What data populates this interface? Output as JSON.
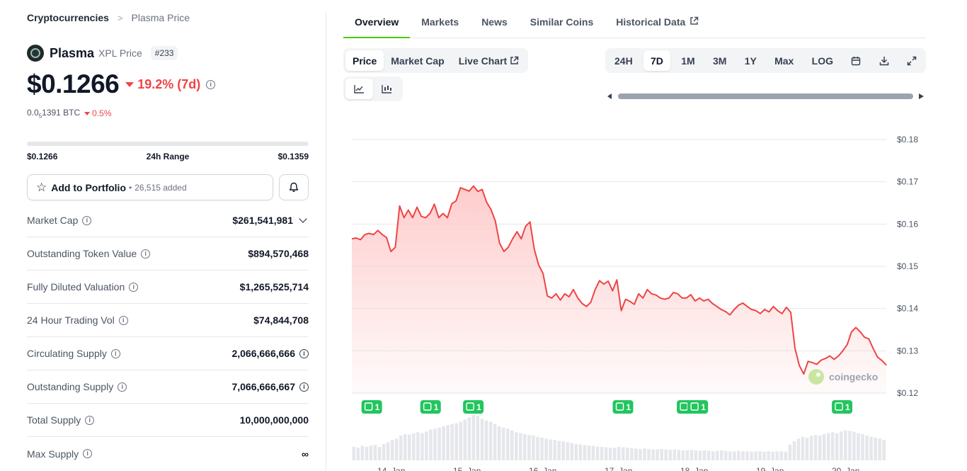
{
  "breadcrumb": {
    "root": "Cryptocurrencies",
    "sep": ">",
    "current": "Plasma Price"
  },
  "coin": {
    "name": "Plasma",
    "symbol": "XPL Price",
    "rank": "#233"
  },
  "price": {
    "value": "$0.1266",
    "change": "19.2% (7d)",
    "btc_value": "0.0",
    "btc_sub": "5",
    "btc_rest": "1391 BTC",
    "btc_change": "0.5%",
    "change_color": "#ef4444"
  },
  "range": {
    "low": "$0.1266",
    "label": "24h Range",
    "high": "$0.1359"
  },
  "portfolio": {
    "label": "Add to Portfolio",
    "bullet": "•",
    "added": "26,515 added"
  },
  "stats": [
    {
      "label": "Market Cap",
      "value": "$261,541,981"
    },
    {
      "label": "Outstanding Token Value",
      "value": "$894,570,468"
    },
    {
      "label": "Fully Diluted Valuation",
      "value": "$1,265,525,714"
    },
    {
      "label": "24 Hour Trading Vol",
      "value": "$74,844,708"
    },
    {
      "label": "Circulating Supply",
      "value": "2,066,666,666"
    },
    {
      "label": "Outstanding Supply",
      "value": "7,066,666,667"
    },
    {
      "label": "Total Supply",
      "value": "10,000,000,000"
    },
    {
      "label": "Max Supply",
      "value": "∞"
    }
  ],
  "tabs": [
    {
      "label": "Overview"
    },
    {
      "label": "Markets"
    },
    {
      "label": "News"
    },
    {
      "label": "Similar Coins"
    },
    {
      "label": "Historical Data"
    }
  ],
  "chart_types": [
    {
      "label": "Price"
    },
    {
      "label": "Market Cap"
    },
    {
      "label": "Live Chart"
    }
  ],
  "ranges": [
    {
      "label": "24H"
    },
    {
      "label": "7D"
    },
    {
      "label": "1M"
    },
    {
      "label": "3M"
    },
    {
      "label": "1Y"
    },
    {
      "label": "Max"
    },
    {
      "label": "LOG"
    }
  ],
  "chart_data": {
    "type": "area",
    "series": [
      {
        "values": [
          0.1565,
          0.1567,
          0.1563,
          0.1575,
          0.1578,
          0.1575,
          0.1585,
          0.1575,
          0.1568,
          0.1535,
          0.1545,
          0.1643,
          0.1615,
          0.1633,
          0.1615,
          0.164,
          0.1618,
          0.1615,
          0.1625,
          0.1647,
          0.1615,
          0.1625,
          0.1615,
          0.1648,
          0.1655,
          0.1686,
          0.1682,
          0.1678,
          0.169,
          0.1677,
          0.1682,
          0.1652,
          0.1635,
          0.1608,
          0.1555,
          0.1535,
          0.1545,
          0.1565,
          0.1582,
          0.1565,
          0.1595,
          0.1605,
          0.154,
          0.1503,
          0.1483,
          0.143,
          0.1425,
          0.1435,
          0.142,
          0.1435,
          0.1428,
          0.1445,
          0.1425,
          0.1412,
          0.1405,
          0.1415,
          0.1445,
          0.1466,
          0.1458,
          0.1465,
          0.1442,
          0.1468,
          0.1395,
          0.1422,
          0.1417,
          0.141,
          0.1435,
          0.1425,
          0.1445,
          0.1435,
          0.1432,
          0.1425,
          0.1422,
          0.1425,
          0.1438,
          0.1435,
          0.1425,
          0.1425,
          0.1433,
          0.1418,
          0.1425,
          0.1418,
          0.1422,
          0.1412,
          0.1405,
          0.1398,
          0.1393,
          0.1385,
          0.1398,
          0.1408,
          0.1413,
          0.1405,
          0.1398,
          0.1395,
          0.1388,
          0.1398,
          0.1392,
          0.1405,
          0.1395,
          0.1388,
          0.1403,
          0.1391,
          0.1305,
          0.1265,
          0.1245,
          0.1275,
          0.1272,
          0.1268,
          0.1278,
          0.1282,
          0.1288,
          0.128,
          0.1288,
          0.13,
          0.1315,
          0.1345,
          0.1355,
          0.1345,
          0.1332,
          0.1328,
          0.1305,
          0.1285,
          0.1277,
          0.1266
        ]
      }
    ],
    "x_tick_labels": [
      "14. Jan",
      "15. Jan",
      "16. Jan",
      "17. Jan",
      "18. Jan",
      "19. Jan",
      "20. Jan"
    ],
    "y_tick_labels": [
      "$0.18",
      "$0.17",
      "$0.16",
      "$0.15",
      "$0.14",
      "$0.13",
      "$0.12"
    ],
    "ylim": [
      0.12,
      0.18
    ],
    "line_color": "#ef4444",
    "fill_color": "#fecaca",
    "watermark": "coingecko",
    "news_markers": [
      {
        "x": 0.03,
        "count": "1"
      },
      {
        "x": 0.14,
        "count": "1"
      },
      {
        "x": 0.22,
        "count": "1"
      },
      {
        "x": 0.5,
        "count": "1"
      },
      {
        "x": 0.62,
        "count": "1"
      },
      {
        "x": 0.64,
        "count": "1"
      },
      {
        "x": 0.91,
        "count": "1"
      }
    ],
    "volume": [
      0.3,
      0.28,
      0.32,
      0.3,
      0.33,
      0.34,
      0.3,
      0.36,
      0.4,
      0.45,
      0.48,
      0.55,
      0.58,
      0.57,
      0.6,
      0.62,
      0.6,
      0.64,
      0.68,
      0.7,
      0.72,
      0.75,
      0.78,
      0.8,
      0.82,
      0.85,
      0.9,
      0.95,
      1.0,
      0.98,
      0.92,
      0.88,
      0.85,
      0.8,
      0.75,
      0.72,
      0.7,
      0.66,
      0.62,
      0.6,
      0.58,
      0.56,
      0.55,
      0.52,
      0.5,
      0.48,
      0.46,
      0.45,
      0.43,
      0.42,
      0.4,
      0.38,
      0.36,
      0.35,
      0.34,
      0.33,
      0.32,
      0.3,
      0.3,
      0.29,
      0.28,
      0.28,
      0.3,
      0.29,
      0.28,
      0.27,
      0.26,
      0.25,
      0.26,
      0.25,
      0.24,
      0.24,
      0.25,
      0.24,
      0.23,
      0.24,
      0.23,
      0.22,
      0.22,
      0.23,
      0.22,
      0.21,
      0.22,
      0.21,
      0.2,
      0.21,
      0.22,
      0.21,
      0.2,
      0.2,
      0.21,
      0.2,
      0.2,
      0.19,
      0.2,
      0.2,
      0.19,
      0.2,
      0.19,
      0.2,
      0.2,
      0.19,
      0.35,
      0.42,
      0.48,
      0.52,
      0.5,
      0.54,
      0.56,
      0.55,
      0.58,
      0.6,
      0.62,
      0.6,
      0.64,
      0.66,
      0.65,
      0.63,
      0.6,
      0.58,
      0.55,
      0.52,
      0.5,
      0.48,
      0.45
    ]
  }
}
